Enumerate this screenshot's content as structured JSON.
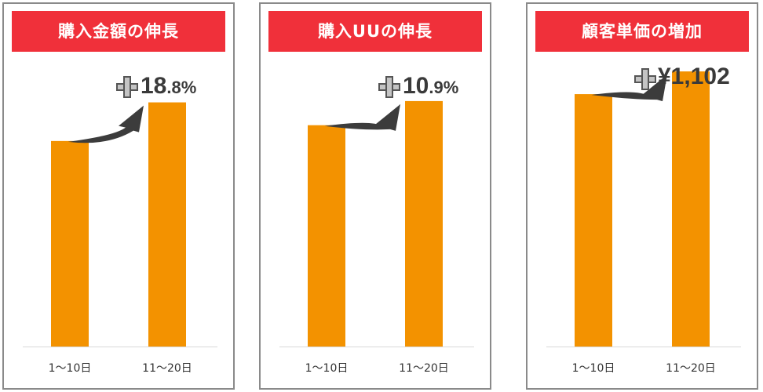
{
  "colors": {
    "title_bg": "#f0303a",
    "bar": "#f39200",
    "arrow": "#3c3c3c",
    "text": "#3a3a3a"
  },
  "chart_data": [
    {
      "type": "bar",
      "title": "購入金額の伸長",
      "categories": [
        "1〜10日",
        "11〜20日"
      ],
      "values": [
        1.0,
        1.188
      ],
      "ylim": [
        0,
        1.4
      ],
      "annotation": {
        "prefix_icon": "plus-icon",
        "main": "18",
        "suffix": ".8%"
      }
    },
    {
      "type": "bar",
      "title": "購入UUの伸長",
      "categories": [
        "1〜10日",
        "11〜20日"
      ],
      "values": [
        1.0,
        1.109
      ],
      "ylim": [
        0,
        1.3
      ],
      "annotation": {
        "prefix_icon": "plus-icon",
        "main": "10",
        "suffix": ".9%"
      }
    },
    {
      "type": "bar",
      "title": "顧客単価の増加",
      "categories": [
        "1〜10日",
        "11〜20日"
      ],
      "values": [
        1.0,
        1.09
      ],
      "ylim": [
        0,
        1.14
      ],
      "annotation": {
        "prefix_icon": "plus-icon",
        "main": "¥1,102",
        "suffix": ""
      }
    }
  ]
}
